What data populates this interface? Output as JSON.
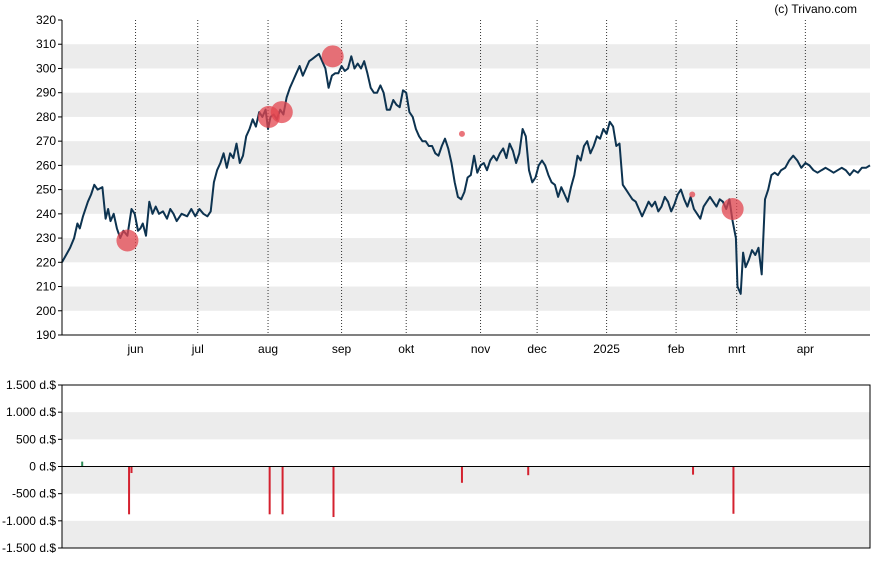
{
  "credit": "(c) Trivano.com",
  "chart_data": [
    {
      "type": "line",
      "ylim": [
        190,
        320
      ],
      "yticks": [
        190,
        200,
        210,
        220,
        230,
        240,
        250,
        260,
        270,
        280,
        290,
        300,
        310,
        320
      ],
      "month_ticks": [
        {
          "label": "jun",
          "t": 0.091
        },
        {
          "label": "jul",
          "t": 0.168
        },
        {
          "label": "aug",
          "t": 0.255
        },
        {
          "label": "sep",
          "t": 0.346
        },
        {
          "label": "okt",
          "t": 0.426
        },
        {
          "label": "nov",
          "t": 0.518
        },
        {
          "label": "dec",
          "t": 0.588
        },
        {
          "label": "2025",
          "t": 0.674
        },
        {
          "label": "feb",
          "t": 0.76
        },
        {
          "label": "mrt",
          "t": 0.835
        },
        {
          "label": "apr",
          "t": 0.92
        }
      ],
      "series": [
        {
          "color": "#0d3350",
          "points": [
            [
              0.0,
              220
            ],
            [
              0.01,
              226
            ],
            [
              0.015,
              230
            ],
            [
              0.019,
              236
            ],
            [
              0.022,
              234
            ],
            [
              0.026,
              239
            ],
            [
              0.032,
              245
            ],
            [
              0.036,
              248
            ],
            [
              0.04,
              252
            ],
            [
              0.044,
              250
            ],
            [
              0.05,
              251
            ],
            [
              0.054,
              238
            ],
            [
              0.057,
              242
            ],
            [
              0.06,
              237
            ],
            [
              0.064,
              240
            ],
            [
              0.068,
              234
            ],
            [
              0.072,
              230
            ],
            [
              0.076,
              233
            ],
            [
              0.081,
              231
            ],
            [
              0.086,
              242
            ],
            [
              0.09,
              240
            ],
            [
              0.094,
              233
            ],
            [
              0.097,
              234
            ],
            [
              0.1,
              236
            ],
            [
              0.104,
              231
            ],
            [
              0.108,
              245
            ],
            [
              0.112,
              240
            ],
            [
              0.116,
              243
            ],
            [
              0.12,
              240
            ],
            [
              0.125,
              241
            ],
            [
              0.13,
              238
            ],
            [
              0.134,
              242
            ],
            [
              0.138,
              240
            ],
            [
              0.142,
              237
            ],
            [
              0.148,
              240
            ],
            [
              0.155,
              239
            ],
            [
              0.16,
              242
            ],
            [
              0.165,
              239
            ],
            [
              0.17,
              242
            ],
            [
              0.175,
              240
            ],
            [
              0.18,
              239
            ],
            [
              0.184,
              241
            ],
            [
              0.188,
              253
            ],
            [
              0.192,
              258
            ],
            [
              0.196,
              261
            ],
            [
              0.2,
              265
            ],
            [
              0.204,
              259
            ],
            [
              0.208,
              265
            ],
            [
              0.212,
              263
            ],
            [
              0.216,
              269
            ],
            [
              0.22,
              261
            ],
            [
              0.224,
              264
            ],
            [
              0.228,
              272
            ],
            [
              0.232,
              275
            ],
            [
              0.236,
              279
            ],
            [
              0.24,
              276
            ],
            [
              0.244,
              282
            ],
            [
              0.248,
              280
            ],
            [
              0.252,
              283
            ],
            [
              0.255,
              275
            ],
            [
              0.258,
              280
            ],
            [
              0.262,
              281
            ],
            [
              0.266,
              279
            ],
            [
              0.27,
              283
            ],
            [
              0.274,
              281
            ],
            [
              0.278,
              288
            ],
            [
              0.282,
              292
            ],
            [
              0.286,
              295
            ],
            [
              0.29,
              298
            ],
            [
              0.294,
              301
            ],
            [
              0.298,
              297
            ],
            [
              0.302,
              300
            ],
            [
              0.306,
              303
            ],
            [
              0.31,
              304
            ],
            [
              0.314,
              305
            ],
            [
              0.318,
              306
            ],
            [
              0.322,
              303
            ],
            [
              0.326,
              300
            ],
            [
              0.33,
              292
            ],
            [
              0.334,
              297
            ],
            [
              0.338,
              298
            ],
            [
              0.342,
              298
            ],
            [
              0.346,
              301
            ],
            [
              0.35,
              299
            ],
            [
              0.354,
              300
            ],
            [
              0.358,
              305
            ],
            [
              0.362,
              300
            ],
            [
              0.366,
              302
            ],
            [
              0.37,
              300
            ],
            [
              0.374,
              303
            ],
            [
              0.378,
              298
            ],
            [
              0.382,
              292
            ],
            [
              0.386,
              290
            ],
            [
              0.39,
              290
            ],
            [
              0.394,
              293
            ],
            [
              0.398,
              290
            ],
            [
              0.402,
              283
            ],
            [
              0.406,
              283
            ],
            [
              0.41,
              287
            ],
            [
              0.414,
              285
            ],
            [
              0.418,
              284
            ],
            [
              0.422,
              291
            ],
            [
              0.426,
              290
            ],
            [
              0.43,
              282
            ],
            [
              0.434,
              280
            ],
            [
              0.438,
              275
            ],
            [
              0.442,
              272
            ],
            [
              0.446,
              270
            ],
            [
              0.45,
              270
            ],
            [
              0.454,
              268
            ],
            [
              0.458,
              268
            ],
            [
              0.462,
              265
            ],
            [
              0.466,
              264
            ],
            [
              0.47,
              268
            ],
            [
              0.474,
              271
            ],
            [
              0.478,
              267
            ],
            [
              0.482,
              261
            ],
            [
              0.486,
              253
            ],
            [
              0.49,
              247
            ],
            [
              0.494,
              246
            ],
            [
              0.498,
              249
            ],
            [
              0.502,
              255
            ],
            [
              0.506,
              256
            ],
            [
              0.51,
              264
            ],
            [
              0.514,
              257
            ],
            [
              0.518,
              260
            ],
            [
              0.522,
              261
            ],
            [
              0.526,
              258
            ],
            [
              0.53,
              262
            ],
            [
              0.534,
              264
            ],
            [
              0.538,
              262
            ],
            [
              0.542,
              265
            ],
            [
              0.546,
              267
            ],
            [
              0.55,
              263
            ],
            [
              0.554,
              269
            ],
            [
              0.558,
              266
            ],
            [
              0.562,
              261
            ],
            [
              0.566,
              265
            ],
            [
              0.57,
              275
            ],
            [
              0.574,
              272
            ],
            [
              0.578,
              258
            ],
            [
              0.582,
              253
            ],
            [
              0.586,
              255
            ],
            [
              0.59,
              260
            ],
            [
              0.594,
              262
            ],
            [
              0.598,
              260
            ],
            [
              0.602,
              256
            ],
            [
              0.606,
              253
            ],
            [
              0.61,
              252
            ],
            [
              0.614,
              247
            ],
            [
              0.618,
              251
            ],
            [
              0.622,
              248
            ],
            [
              0.626,
              245
            ],
            [
              0.63,
              251
            ],
            [
              0.634,
              256
            ],
            [
              0.638,
              264
            ],
            [
              0.642,
              262
            ],
            [
              0.646,
              268
            ],
            [
              0.65,
              270
            ],
            [
              0.654,
              265
            ],
            [
              0.658,
              268
            ],
            [
              0.662,
              272
            ],
            [
              0.666,
              271
            ],
            [
              0.67,
              275
            ],
            [
              0.674,
              273
            ],
            [
              0.678,
              278
            ],
            [
              0.682,
              276
            ],
            [
              0.686,
              268
            ],
            [
              0.69,
              269
            ],
            [
              0.694,
              252
            ],
            [
              0.698,
              250
            ],
            [
              0.702,
              248
            ],
            [
              0.706,
              246
            ],
            [
              0.71,
              245
            ],
            [
              0.714,
              242
            ],
            [
              0.718,
              239
            ],
            [
              0.722,
              242
            ],
            [
              0.726,
              245
            ],
            [
              0.73,
              243
            ],
            [
              0.734,
              245
            ],
            [
              0.738,
              241
            ],
            [
              0.742,
              243
            ],
            [
              0.746,
              247
            ],
            [
              0.75,
              245
            ],
            [
              0.754,
              241
            ],
            [
              0.758,
              244
            ],
            [
              0.762,
              248
            ],
            [
              0.766,
              250
            ],
            [
              0.77,
              246
            ],
            [
              0.774,
              243
            ],
            [
              0.778,
              247
            ],
            [
              0.782,
              242
            ],
            [
              0.786,
              240
            ],
            [
              0.79,
              238
            ],
            [
              0.794,
              243
            ],
            [
              0.798,
              245
            ],
            [
              0.802,
              247
            ],
            [
              0.806,
              245
            ],
            [
              0.81,
              243
            ],
            [
              0.814,
              246
            ],
            [
              0.818,
              245
            ],
            [
              0.822,
              242
            ],
            [
              0.826,
              246
            ],
            [
              0.83,
              237
            ],
            [
              0.834,
              230
            ],
            [
              0.836,
              210
            ],
            [
              0.84,
              207
            ],
            [
              0.843,
              224
            ],
            [
              0.846,
              218
            ],
            [
              0.85,
              221
            ],
            [
              0.854,
              225
            ],
            [
              0.858,
              223
            ],
            [
              0.862,
              226
            ],
            [
              0.866,
              215
            ],
            [
              0.87,
              246
            ],
            [
              0.874,
              250
            ],
            [
              0.878,
              256
            ],
            [
              0.882,
              257
            ],
            [
              0.886,
              256
            ],
            [
              0.89,
              258
            ],
            [
              0.895,
              259
            ],
            [
              0.9,
              262
            ],
            [
              0.905,
              264
            ],
            [
              0.91,
              262
            ],
            [
              0.915,
              259
            ],
            [
              0.92,
              261
            ],
            [
              0.925,
              260
            ],
            [
              0.93,
              258
            ],
            [
              0.935,
              257
            ],
            [
              0.94,
              258
            ],
            [
              0.945,
              259
            ],
            [
              0.95,
              258
            ],
            [
              0.955,
              257
            ],
            [
              0.96,
              258
            ],
            [
              0.965,
              259
            ],
            [
              0.97,
              258
            ],
            [
              0.975,
              256
            ],
            [
              0.98,
              258
            ],
            [
              0.985,
              257
            ],
            [
              0.99,
              259
            ],
            [
              0.995,
              259
            ],
            [
              1.0,
              260
            ]
          ]
        }
      ],
      "markers": [
        {
          "t": 0.081,
          "y": 229,
          "size": "large",
          "color": "#e3464f"
        },
        {
          "t": 0.256,
          "y": 280,
          "size": "large",
          "color": "#e3464f"
        },
        {
          "t": 0.272,
          "y": 282,
          "size": "large",
          "color": "#e3464f"
        },
        {
          "t": 0.335,
          "y": 305,
          "size": "large",
          "color": "#e3464f"
        },
        {
          "t": 0.495,
          "y": 273,
          "size": "small",
          "color": "#e3464f"
        },
        {
          "t": 0.78,
          "y": 248,
          "size": "small",
          "color": "#e3464f"
        },
        {
          "t": 0.83,
          "y": 242,
          "size": "large",
          "color": "#e3464f"
        }
      ],
      "grid": true
    },
    {
      "type": "bar",
      "ylim": [
        -1500,
        1500
      ],
      "ytick_labels": [
        "1.500 d.$",
        "1.000 d.$",
        "500 d.$",
        "0 d.$",
        "-500 d.$",
        "-1.000 d.$",
        "-1.500 d.$"
      ],
      "yticks": [
        1500,
        1000,
        500,
        0,
        -500,
        -1000,
        -1500
      ],
      "bars": [
        {
          "t": 0.025,
          "value": 90,
          "color": "#2e8b57"
        },
        {
          "t": 0.083,
          "value": -880,
          "color": "#d4212f"
        },
        {
          "t": 0.086,
          "value": -120,
          "color": "#d4212f"
        },
        {
          "t": 0.257,
          "value": -880,
          "color": "#d4212f"
        },
        {
          "t": 0.273,
          "value": -880,
          "color": "#d4212f"
        },
        {
          "t": 0.336,
          "value": -930,
          "color": "#d4212f"
        },
        {
          "t": 0.495,
          "value": -300,
          "color": "#d4212f"
        },
        {
          "t": 0.577,
          "value": -160,
          "color": "#d4212f"
        },
        {
          "t": 0.781,
          "value": -150,
          "color": "#d4212f"
        },
        {
          "t": 0.831,
          "value": -870,
          "color": "#d4212f"
        }
      ]
    }
  ]
}
